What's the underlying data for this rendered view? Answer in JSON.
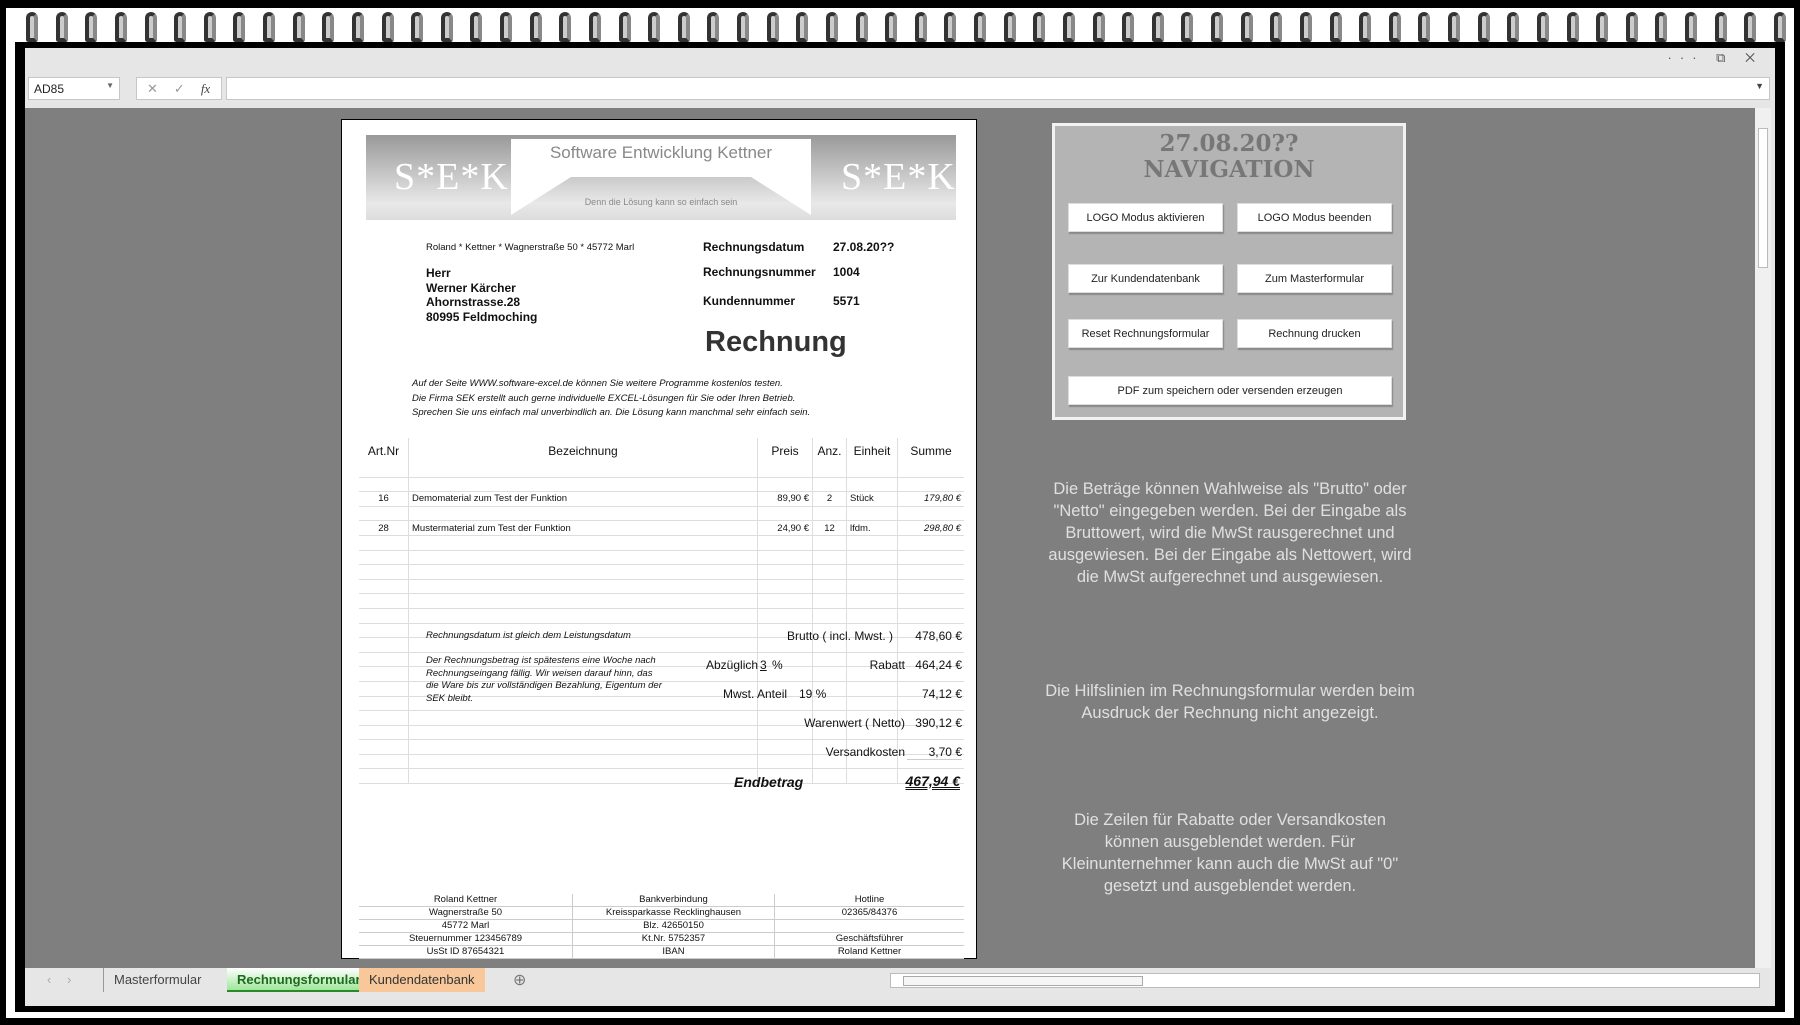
{
  "formula_bar": {
    "name_box": "AD85",
    "cancel_icon": "✕",
    "enter_icon": "✓",
    "fx_label": "fx",
    "formula": ""
  },
  "window_controls": {
    "more": "···",
    "restore": "⧉",
    "close": "✕"
  },
  "invoice": {
    "logo": {
      "left": "S*E*K",
      "right": "S*E*K",
      "title": "Software Entwicklung Kettner",
      "slogan": "Denn die Lösung kann so einfach sein"
    },
    "sender_line": "Roland  *  Kettner  *  Wagnerstraße 50  *  45772 Marl",
    "recipient": [
      "Herr",
      "Werner Kärcher",
      "Ahornstrasse.28",
      "80995 Feldmoching"
    ],
    "meta": [
      {
        "label": "Rechnungsdatum",
        "value": "27.08.20??"
      },
      {
        "label": "Rechnungsnummer",
        "value": "1004"
      },
      {
        "label": "Kundennummer",
        "value": "5571"
      }
    ],
    "title": "Rechnung",
    "promo": [
      "Auf der Seite WWW.software-excel.de können Sie weitere Programme kostenlos testen.",
      "Die Firma SEK erstellt auch gerne individuelle EXCEL-Lösungen für Sie oder Ihren Betrieb.",
      "Sprechen Sie uns einfach mal unverbindlich an. Die Lösung kann manchmal sehr einfach sein."
    ],
    "columns": [
      "Art.Nr",
      "Bezeichnung",
      "Preis",
      "Anz.",
      "Einheit",
      "Summe"
    ],
    "items": [
      {
        "artnr": "16",
        "bezeichnung": "Demomaterial zum Test der Funktion",
        "preis": "89,90 €",
        "anz": "2",
        "einheit": "Stück",
        "summe": "179,80 €"
      },
      {
        "artnr": "28",
        "bezeichnung": "Mustermaterial zum Test der Funktion",
        "preis": "24,90 €",
        "anz": "12",
        "einheit": "lfdm.",
        "summe": "298,80 €"
      }
    ],
    "notes": {
      "date_note": "Rechnungsdatum ist gleich dem Leistungsdatum",
      "payment_note": "Der Rechnungsbetrag ist spätestens eine Woche nach Rechnungseingang fällig. Wir weisen darauf hinn, das die Ware bis zur vollständigen Bezahlung, Eigentum der SEK bleibt."
    },
    "totals": {
      "brutto_label": "Brutto ( incl. Mwst. )",
      "brutto": "478,60 €",
      "abzueglich_label": "Abzüglich",
      "rabatt_pct": "3",
      "pct": "%",
      "rabatt_label": "Rabatt",
      "rabatt": "464,24 €",
      "mwst_label": "Mwst. Anteil",
      "mwst_pct": "19 %",
      "mwst": "74,12 €",
      "netto_label": "Warenwert ( Netto)",
      "netto": "390,12 €",
      "versand_label": "Versandkosten",
      "versand": "3,70 €",
      "end_label": "Endbetrag",
      "end": "467,94 €"
    },
    "footer": [
      [
        "Roland Kettner",
        "Bankverbindung",
        "Hotline"
      ],
      [
        "Wagnerstraße 50",
        "Kreissparkasse Recklinghausen",
        "02365/84376"
      ],
      [
        "45772 Marl",
        "Blz. 42650150",
        ""
      ],
      [
        "Steuernummer 123456789",
        "Kt.Nr. 5752357",
        "Geschäftsführer"
      ],
      [
        "UsSt ID 87654321",
        "IBAN",
        "Roland Kettner"
      ]
    ]
  },
  "navigation": {
    "date": "27.08.20??",
    "title": "NAVIGATION",
    "buttons": [
      "LOGO Modus aktivieren",
      "LOGO Modus beenden",
      "Zur Kundendatenbank",
      "Zum Masterformular",
      "Reset Rechnungsformular",
      "Rechnung drucken",
      "PDF zum speichern oder versenden erzeugen"
    ]
  },
  "info_texts": [
    "Die Beträge können Wahlweise als \"Brutto\" oder \"Netto\" eingegeben werden. Bei der Eingabe als Bruttowert, wird die MwSt rausgerechnet und ausgewiesen. Bei der Eingabe als Nettowert, wird die MwSt aufgerechnet und ausgewiesen.",
    "Die Hilfslinien im Rechnungsformular werden beim Ausdruck der Rechnung nicht angezeigt.",
    "Die Zeilen für Rabatte oder Versandkosten können ausgeblendet werden. Für Kleinunternehmer kann auch die MwSt auf \"0\" gesetzt und ausgeblendet werden."
  ],
  "sheet_tabs": [
    {
      "label": "Masterformular",
      "color": "#e6e6e6"
    },
    {
      "label": "Rechnungsformular",
      "color": "#b6f0b0",
      "active": true
    },
    {
      "label": "Kundendatenbank",
      "color": "#f8c89a"
    }
  ],
  "add_sheet": "⊕"
}
